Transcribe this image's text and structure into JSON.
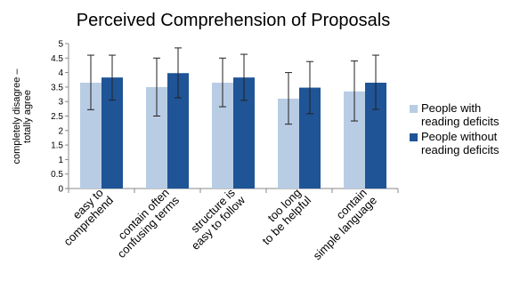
{
  "chart_data": {
    "type": "bar",
    "title": "Perceived Comprehension of Proposals",
    "ylabel_lines": [
      "completely disagree –",
      "totally agree"
    ],
    "ylim": [
      0,
      5
    ],
    "yticks": [
      "0",
      "0.5",
      "1",
      "1.5",
      "2",
      "2.5",
      "3",
      "3.5",
      "4",
      "4.5",
      "5"
    ],
    "grid": false,
    "legend_position": "right",
    "categories": [
      [
        "easy to",
        "comprehend"
      ],
      [
        "contain often",
        "confusing terms"
      ],
      [
        "structure is",
        "easy to follow"
      ],
      [
        "too long",
        "to be helpful"
      ],
      [
        "contain",
        "simple language"
      ]
    ],
    "series": [
      {
        "name_lines": [
          "People with",
          "reading deficits"
        ],
        "color": "#b8cce4",
        "values": [
          3.65,
          3.5,
          3.65,
          3.1,
          3.35
        ],
        "error_low": [
          2.72,
          2.5,
          2.82,
          2.22,
          2.33
        ],
        "error_high": [
          4.6,
          4.5,
          4.5,
          4.0,
          4.4
        ]
      },
      {
        "name_lines": [
          "People without",
          "reading deficits"
        ],
        "color": "#1f5496",
        "values": [
          3.83,
          3.98,
          3.83,
          3.48,
          3.65
        ],
        "error_low": [
          3.05,
          3.13,
          3.04,
          2.58,
          2.73
        ],
        "error_high": [
          4.6,
          4.85,
          4.63,
          4.38,
          4.6
        ]
      }
    ]
  }
}
